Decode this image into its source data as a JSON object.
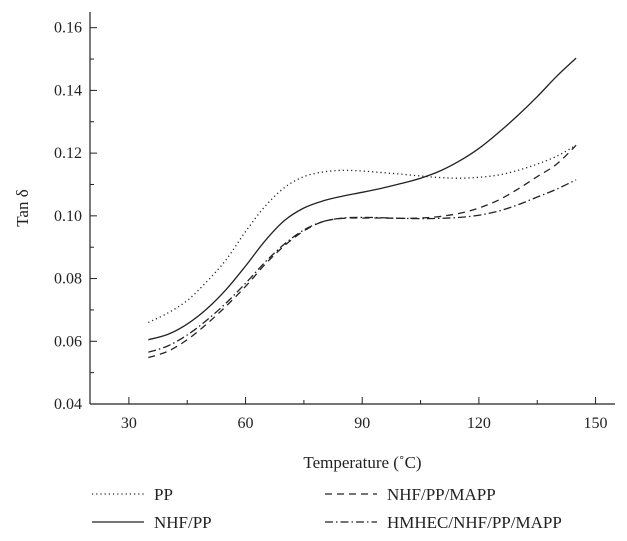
{
  "chart_data": {
    "type": "line",
    "xlabel": "Temperature (˚C)",
    "ylabel": "Tan δ",
    "xlim": [
      20,
      155
    ],
    "ylim": [
      0.04,
      0.165
    ],
    "x_ticks": [
      30,
      60,
      90,
      120,
      150
    ],
    "x_tick_labels": [
      "30",
      "60",
      "90",
      "120",
      "150"
    ],
    "y_ticks": [
      0.04,
      0.06,
      0.08,
      0.1,
      0.12,
      0.14,
      0.16
    ],
    "y_tick_labels": [
      "0.04",
      "0.06",
      "0.08",
      "0.10",
      "0.12",
      "0.14",
      "0.16"
    ],
    "grid": false,
    "legend_position": "bottom",
    "series": [
      {
        "name": "PP",
        "dash": "dotted",
        "x": [
          35,
          40,
          45,
          50,
          55,
          60,
          65,
          70,
          75,
          80,
          85,
          90,
          95,
          100,
          105,
          110,
          115,
          120,
          125,
          130,
          135,
          140,
          145
        ],
        "y": [
          0.066,
          0.069,
          0.073,
          0.079,
          0.086,
          0.095,
          0.103,
          0.109,
          0.1125,
          0.114,
          0.1145,
          0.1143,
          0.1138,
          0.1133,
          0.1127,
          0.1122,
          0.112,
          0.1123,
          0.113,
          0.1145,
          0.1165,
          0.119,
          0.1225
        ]
      },
      {
        "name": "NHF/PP",
        "dash": "solid",
        "x": [
          35,
          40,
          45,
          50,
          55,
          60,
          65,
          70,
          75,
          80,
          85,
          90,
          95,
          100,
          105,
          110,
          115,
          120,
          125,
          130,
          135,
          140,
          145
        ],
        "y": [
          0.0605,
          0.0622,
          0.0655,
          0.0703,
          0.0765,
          0.084,
          0.092,
          0.0985,
          0.1025,
          0.1048,
          0.1063,
          0.1075,
          0.1088,
          0.1103,
          0.112,
          0.1143,
          0.1175,
          0.1215,
          0.1265,
          0.132,
          0.138,
          0.1445,
          0.1503
        ]
      },
      {
        "name": "NHF/PP/MAPP",
        "dash": "dashed",
        "x": [
          35,
          40,
          45,
          50,
          55,
          60,
          65,
          70,
          75,
          80,
          85,
          90,
          95,
          100,
          105,
          110,
          115,
          120,
          125,
          130,
          135,
          140,
          145
        ],
        "y": [
          0.0548,
          0.0568,
          0.0605,
          0.0655,
          0.0712,
          0.0775,
          0.0845,
          0.0905,
          0.0952,
          0.0982,
          0.0992,
          0.0993,
          0.0993,
          0.0992,
          0.0993,
          0.0998,
          0.1008,
          0.1025,
          0.105,
          0.1085,
          0.1125,
          0.1165,
          0.1225
        ]
      },
      {
        "name": "HMHEC/NHF/PP/MAPP",
        "dash": "dashdot",
        "x": [
          35,
          40,
          45,
          50,
          55,
          60,
          65,
          70,
          75,
          80,
          85,
          90,
          95,
          100,
          105,
          110,
          115,
          120,
          125,
          130,
          135,
          140,
          145
        ],
        "y": [
          0.0565,
          0.0585,
          0.062,
          0.0667,
          0.0722,
          0.0785,
          0.0852,
          0.091,
          0.0955,
          0.0982,
          0.0993,
          0.0995,
          0.0994,
          0.0992,
          0.0991,
          0.0992,
          0.0995,
          0.1002,
          0.1015,
          0.1035,
          0.106,
          0.1085,
          0.1115
        ]
      }
    ]
  }
}
